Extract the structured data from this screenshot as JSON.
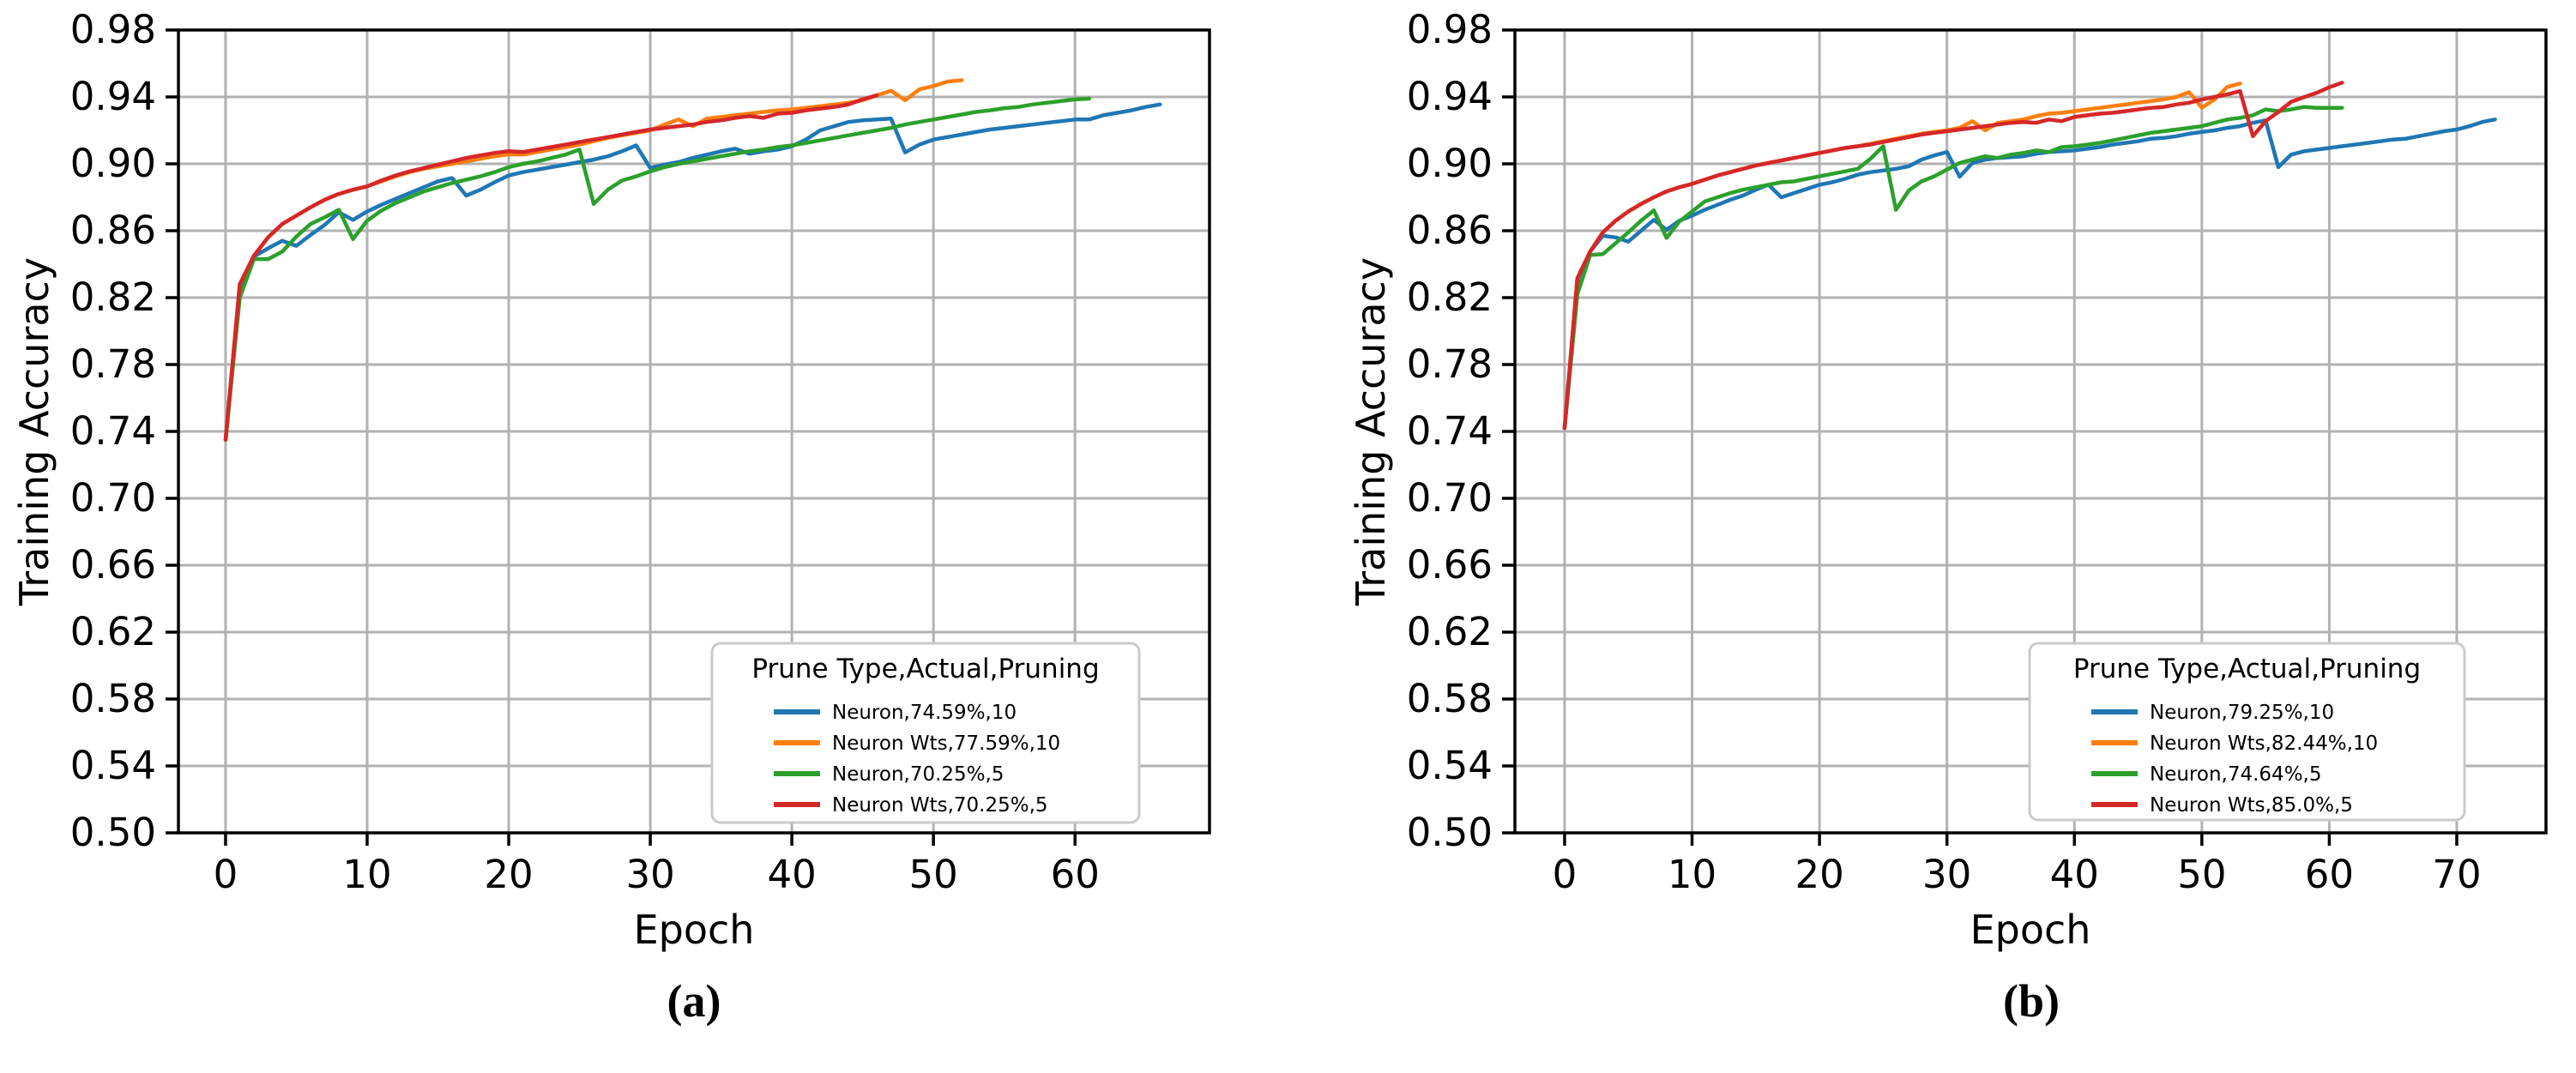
{
  "figure": {
    "background": "#ffffff",
    "description_note": "Two matplotlib-style line charts of training accuracy vs epoch"
  },
  "style": {
    "grid_color": "#b2b2b2",
    "spine_color": "#000000",
    "tick_color": "#000000",
    "legend_edge_color": "#cacaca",
    "legend_face_color": "#ffffff",
    "text_color": "#000000"
  },
  "chart_data": [
    {
      "type": "line",
      "caption": "(a)",
      "xlabel": "Epoch",
      "ylabel": "Training Accuracy",
      "grid": true,
      "xlim": [
        -3.33,
        69.5
      ],
      "ylim": [
        0.5,
        0.98
      ],
      "xticks": [
        0,
        10,
        20,
        30,
        40,
        50,
        60
      ],
      "yticks": [
        0.5,
        0.54,
        0.58,
        0.62,
        0.66,
        0.7,
        0.74,
        0.78,
        0.82,
        0.86,
        0.9,
        0.94,
        0.98
      ],
      "legend": {
        "title": "Prune Type,Actual,Pruning",
        "position": "lower right",
        "entries": [
          "Neuron,74.59%,10",
          "Neuron Wts,77.59%,10",
          "Neuron,70.25%,5",
          "Neuron Wts,70.25%,5"
        ]
      },
      "series": [
        {
          "name": "Neuron,74.59%,10",
          "color": "#1f77b4",
          "x_start": 0,
          "x_step": 1,
          "values": [
            0.735,
            0.8255,
            0.8445,
            0.8495,
            0.854,
            0.851,
            0.8575,
            0.8635,
            0.871,
            0.8665,
            0.8715,
            0.8755,
            0.879,
            0.8825,
            0.886,
            0.8895,
            0.8915,
            0.881,
            0.8845,
            0.889,
            0.893,
            0.895,
            0.8965,
            0.898,
            0.8995,
            0.901,
            0.9025,
            0.9045,
            0.9075,
            0.911,
            0.8975,
            0.8995,
            0.901,
            0.9035,
            0.9055,
            0.9075,
            0.909,
            0.906,
            0.9075,
            0.9085,
            0.9105,
            0.9145,
            0.92,
            0.9225,
            0.925,
            0.926,
            0.9265,
            0.927,
            0.9068,
            0.9115,
            0.9145,
            0.916,
            0.9175,
            0.919,
            0.9205,
            0.9215,
            0.9225,
            0.9235,
            0.9245,
            0.9255,
            0.9265,
            0.9265,
            0.929,
            0.9305,
            0.932,
            0.934,
            0.9355
          ]
        },
        {
          "name": "Neuron Wts,77.59%,10",
          "color": "#ff7f0e",
          "x_start": 0,
          "x_step": 1,
          "values": [
            0.735,
            0.828,
            0.845,
            0.856,
            0.864,
            0.869,
            0.874,
            0.8785,
            0.882,
            0.8845,
            0.8865,
            0.8895,
            0.8925,
            0.895,
            0.897,
            0.8985,
            0.9,
            0.9015,
            0.903,
            0.9045,
            0.9057,
            0.9055,
            0.907,
            0.9085,
            0.91,
            0.9115,
            0.9135,
            0.9155,
            0.917,
            0.9185,
            0.92,
            0.9235,
            0.9265,
            0.9225,
            0.927,
            0.928,
            0.929,
            0.93,
            0.931,
            0.932,
            0.9325,
            0.9335,
            0.9345,
            0.9355,
            0.9365,
            0.938,
            0.941,
            0.9437,
            0.938,
            0.9445,
            0.9465,
            0.9492,
            0.95
          ]
        },
        {
          "name": "Neuron,70.25%,5",
          "color": "#2ca02c",
          "x_start": 0,
          "x_step": 1,
          "values": [
            0.735,
            0.82,
            0.843,
            0.843,
            0.8475,
            0.8565,
            0.864,
            0.868,
            0.8725,
            0.855,
            0.866,
            0.872,
            0.8765,
            0.88,
            0.8835,
            0.886,
            0.8885,
            0.8905,
            0.8925,
            0.895,
            0.898,
            0.9,
            0.9015,
            0.9035,
            0.9055,
            0.9085,
            0.876,
            0.8845,
            0.89,
            0.8925,
            0.8955,
            0.898,
            0.9,
            0.9015,
            0.903,
            0.9045,
            0.906,
            0.9075,
            0.9085,
            0.91,
            0.911,
            0.9125,
            0.914,
            0.9155,
            0.917,
            0.9185,
            0.92,
            0.9215,
            0.9235,
            0.925,
            0.9265,
            0.928,
            0.9295,
            0.931,
            0.932,
            0.9333,
            0.934,
            0.9355,
            0.9365,
            0.9375,
            0.9385,
            0.939
          ]
        },
        {
          "name": "Neuron Wts,70.25%,5",
          "color": "#d62728",
          "x_start": 0,
          "x_step": 1,
          "values": [
            0.735,
            0.828,
            0.845,
            0.856,
            0.864,
            0.869,
            0.874,
            0.8785,
            0.882,
            0.8845,
            0.8865,
            0.89,
            0.893,
            0.8955,
            0.8975,
            0.8995,
            0.9015,
            0.9035,
            0.905,
            0.9065,
            0.9076,
            0.907,
            0.9085,
            0.91,
            0.9115,
            0.913,
            0.9145,
            0.916,
            0.9175,
            0.919,
            0.9205,
            0.9215,
            0.9225,
            0.9235,
            0.925,
            0.926,
            0.9275,
            0.9285,
            0.9275,
            0.93,
            0.9305,
            0.932,
            0.933,
            0.934,
            0.9355,
            0.9385,
            0.941
          ]
        }
      ]
    },
    {
      "type": "line",
      "caption": "(b)",
      "xlabel": "Epoch",
      "ylabel": "Training Accuracy",
      "grid": true,
      "xlim": [
        -3.9,
        77.0
      ],
      "ylim": [
        0.5,
        0.98
      ],
      "xticks": [
        0,
        10,
        20,
        30,
        40,
        50,
        60,
        70
      ],
      "yticks": [
        0.5,
        0.54,
        0.58,
        0.62,
        0.66,
        0.7,
        0.74,
        0.78,
        0.82,
        0.86,
        0.9,
        0.94,
        0.98
      ],
      "legend": {
        "title": "Prune Type,Actual,Pruning",
        "position": "lower right",
        "entries": [
          "Neuron,79.25%,10",
          "Neuron Wts,82.44%,10",
          "Neuron,74.64%,5",
          "Neuron Wts,85.0%,5"
        ]
      },
      "series": [
        {
          "name": "Neuron,79.25%,10",
          "color": "#1f77b4",
          "x_start": 0,
          "x_step": 1,
          "values": [
            0.742,
            0.823,
            0.8475,
            0.857,
            0.856,
            0.8535,
            0.86,
            0.8665,
            0.8605,
            0.866,
            0.869,
            0.8725,
            0.8755,
            0.8785,
            0.881,
            0.8845,
            0.8875,
            0.88,
            0.8825,
            0.885,
            0.8875,
            0.889,
            0.891,
            0.8935,
            0.895,
            0.896,
            0.897,
            0.8985,
            0.9025,
            0.905,
            0.907,
            0.8923,
            0.9005,
            0.9025,
            0.9035,
            0.904,
            0.9045,
            0.906,
            0.907,
            0.9075,
            0.908,
            0.909,
            0.91,
            0.9115,
            0.9125,
            0.9135,
            0.915,
            0.9155,
            0.9165,
            0.918,
            0.919,
            0.92,
            0.9215,
            0.9225,
            0.9245,
            0.926,
            0.898,
            0.9055,
            0.9075,
            0.9085,
            0.9095,
            0.9105,
            0.9115,
            0.9125,
            0.9135,
            0.9145,
            0.915,
            0.9165,
            0.918,
            0.9195,
            0.9205,
            0.9225,
            0.925,
            0.9265
          ]
        },
        {
          "name": "Neuron Wts,82.44%,10",
          "color": "#ff7f0e",
          "x_start": 0,
          "x_step": 1,
          "values": [
            0.742,
            0.8315,
            0.8475,
            0.859,
            0.866,
            0.8715,
            0.876,
            0.88,
            0.8835,
            0.886,
            0.888,
            0.8905,
            0.893,
            0.895,
            0.897,
            0.899,
            0.9005,
            0.902,
            0.9035,
            0.905,
            0.9065,
            0.908,
            0.9095,
            0.9105,
            0.912,
            0.9135,
            0.915,
            0.9165,
            0.918,
            0.919,
            0.92,
            0.9215,
            0.9255,
            0.92,
            0.9245,
            0.9255,
            0.9265,
            0.9285,
            0.93,
            0.9305,
            0.9315,
            0.9325,
            0.9335,
            0.9345,
            0.9355,
            0.9365,
            0.9375,
            0.9385,
            0.94,
            0.9428,
            0.9336,
            0.9385,
            0.946,
            0.948
          ]
        },
        {
          "name": "Neuron,74.64%,5",
          "color": "#2ca02c",
          "x_start": 0,
          "x_step": 1,
          "values": [
            0.742,
            0.822,
            0.8455,
            0.846,
            0.8525,
            0.859,
            0.866,
            0.8722,
            0.8557,
            0.8655,
            0.8715,
            0.8775,
            0.88,
            0.8825,
            0.8845,
            0.886,
            0.8875,
            0.889,
            0.8895,
            0.891,
            0.8925,
            0.894,
            0.8955,
            0.897,
            0.903,
            0.9105,
            0.8725,
            0.884,
            0.8895,
            0.8925,
            0.8965,
            0.9005,
            0.9025,
            0.9045,
            0.9035,
            0.9055,
            0.9065,
            0.908,
            0.907,
            0.91,
            0.9105,
            0.9115,
            0.9125,
            0.914,
            0.9155,
            0.917,
            0.9185,
            0.9195,
            0.9205,
            0.9215,
            0.9225,
            0.9245,
            0.9265,
            0.9275,
            0.929,
            0.9325,
            0.9315,
            0.9325,
            0.934,
            0.9335,
            0.9335,
            0.9335
          ]
        },
        {
          "name": "Neuron Wts,85.0%,5",
          "color": "#d62728",
          "x_start": 0,
          "x_step": 1,
          "values": [
            0.742,
            0.8315,
            0.8475,
            0.859,
            0.866,
            0.8715,
            0.876,
            0.88,
            0.8835,
            0.886,
            0.888,
            0.8905,
            0.893,
            0.895,
            0.897,
            0.899,
            0.9005,
            0.902,
            0.9035,
            0.905,
            0.9065,
            0.908,
            0.9095,
            0.9105,
            0.9115,
            0.913,
            0.9145,
            0.916,
            0.9175,
            0.9185,
            0.9195,
            0.9205,
            0.9215,
            0.9225,
            0.9235,
            0.9245,
            0.925,
            0.9245,
            0.9265,
            0.9255,
            0.928,
            0.929,
            0.93,
            0.9305,
            0.9315,
            0.9325,
            0.9335,
            0.934,
            0.9355,
            0.9365,
            0.9385,
            0.94,
            0.9415,
            0.9435,
            0.9165,
            0.9255,
            0.931,
            0.937,
            0.9398,
            0.9424,
            0.9458,
            0.9485
          ]
        }
      ]
    }
  ]
}
